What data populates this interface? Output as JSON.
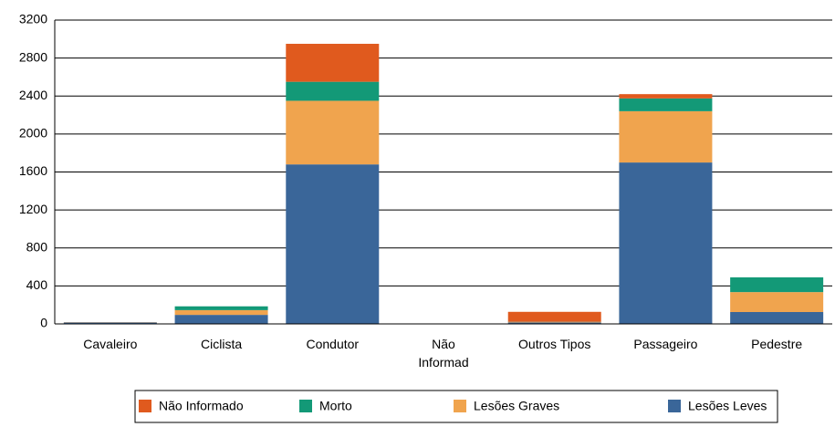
{
  "chart_data": {
    "type": "stacked_bar",
    "categories": [
      "Cavaleiro",
      "Ciclista",
      "Condutor",
      "Não Informad",
      "Outros Tipos",
      "Passageiro",
      "Pedestre"
    ],
    "series": [
      {
        "name": "Não Informado",
        "color": "#e05a1e",
        "values": [
          0,
          0,
          400,
          0,
          105,
          45,
          0
        ]
      },
      {
        "name": "Morto",
        "color": "#139977",
        "values": [
          0,
          40,
          200,
          0,
          2,
          135,
          155
        ]
      },
      {
        "name": "Lesões Graves",
        "color": "#f0a44e",
        "values": [
          3,
          50,
          670,
          0,
          5,
          540,
          210
        ]
      },
      {
        "name": "Lesões Leves",
        "color": "#3a6699",
        "values": [
          15,
          95,
          1680,
          0,
          15,
          1700,
          125
        ]
      }
    ],
    "ylim": [
      0,
      3200
    ],
    "yticks": [
      0,
      400,
      800,
      1200,
      1600,
      2000,
      2400,
      2800,
      3200
    ],
    "grid": true,
    "legend": "bottom"
  }
}
